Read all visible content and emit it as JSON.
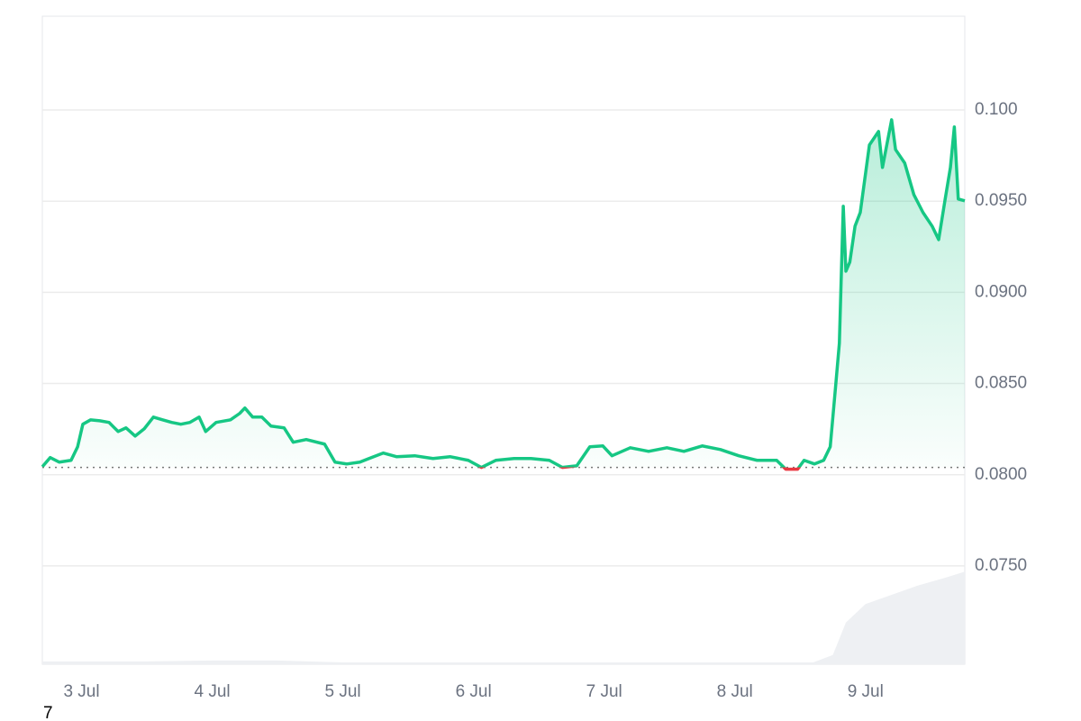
{
  "chart_data": {
    "type": "line",
    "x": [
      2.7,
      2.76,
      2.83,
      2.92,
      2.97,
      3.01,
      3.07,
      3.14,
      3.21,
      3.28,
      3.34,
      3.41,
      3.48,
      3.55,
      3.62,
      3.69,
      3.76,
      3.83,
      3.9,
      3.95,
      4.03,
      4.14,
      4.21,
      4.25,
      4.31,
      4.38,
      4.45,
      4.55,
      4.62,
      4.72,
      4.86,
      4.94,
      5.03,
      5.13,
      5.2,
      5.31,
      5.41,
      5.55,
      5.69,
      5.82,
      5.96,
      6.06,
      6.17,
      6.31,
      6.44,
      6.58,
      6.68,
      6.79,
      6.89,
      6.99,
      7.06,
      7.2,
      7.34,
      7.48,
      7.61,
      7.75,
      7.89,
      8.03,
      8.17,
      8.32,
      8.39,
      8.48,
      8.53,
      8.61,
      8.68,
      8.73,
      8.77,
      8.8,
      8.83,
      8.85,
      8.88,
      8.92,
      8.96,
      9.03,
      9.1,
      9.13,
      9.2,
      9.23,
      9.3,
      9.37,
      9.44,
      9.51,
      9.56,
      9.61,
      9.65,
      9.68,
      9.71,
      9.76
    ],
    "series": [
      {
        "color": "#16c784",
        "below_color": "#ea3943",
        "values": [
          0.08044,
          0.08094,
          0.08069,
          0.08079,
          0.08153,
          0.08277,
          0.08301,
          0.08296,
          0.08287,
          0.08237,
          0.08257,
          0.08212,
          0.08252,
          0.08316,
          0.08301,
          0.08287,
          0.08277,
          0.08287,
          0.08316,
          0.08237,
          0.08287,
          0.08301,
          0.08336,
          0.08366,
          0.08316,
          0.08316,
          0.08267,
          0.08257,
          0.08178,
          0.08193,
          0.08168,
          0.08069,
          0.08059,
          0.08069,
          0.08089,
          0.08119,
          0.08099,
          0.08104,
          0.08089,
          0.08099,
          0.08079,
          0.0804,
          0.08079,
          0.08089,
          0.08089,
          0.08079,
          0.0804,
          0.08049,
          0.08153,
          0.08158,
          0.08104,
          0.08148,
          0.08128,
          0.08148,
          0.08128,
          0.08158,
          0.08138,
          0.08104,
          0.08079,
          0.08079,
          0.0803,
          0.0803,
          0.08079,
          0.08059,
          0.08079,
          0.08153,
          0.08474,
          0.08721,
          0.09472,
          0.09116,
          0.09166,
          0.09363,
          0.09438,
          0.09808,
          0.09882,
          0.09685,
          0.09946,
          0.09783,
          0.09709,
          0.09536,
          0.09438,
          0.09363,
          0.09289,
          0.09512,
          0.09685,
          0.09907,
          0.09512,
          0.09502
        ]
      }
    ],
    "baseline": 0.0804,
    "volume": {
      "color": "#eef0f3",
      "x": [
        2.7,
        3.5,
        4.0,
        4.5,
        5.0,
        6.0,
        7.0,
        8.0,
        8.6,
        8.75,
        8.85,
        9.0,
        9.2,
        9.4,
        9.6,
        9.76
      ],
      "values": [
        3,
        3,
        4,
        4,
        2,
        2,
        2,
        2,
        2,
        10,
        45,
        65,
        75,
        85,
        93,
        100
      ]
    },
    "y2lim": [
      0,
      700
    ],
    "xlim": [
      2.7,
      9.76
    ],
    "xticks": [
      {
        "value": 3,
        "label": "3 Jul"
      },
      {
        "value": 4,
        "label": "4 Jul"
      },
      {
        "value": 5,
        "label": "5 Jul"
      },
      {
        "value": 6,
        "label": "6 Jul"
      },
      {
        "value": 7,
        "label": "7 Jul"
      },
      {
        "value": 8,
        "label": "8 Jul"
      },
      {
        "value": 9,
        "label": "9 Jul"
      }
    ],
    "ylim": [
      0.06961,
      0.10514
    ],
    "yticks": [
      {
        "value": 0.075,
        "label": "0.0750"
      },
      {
        "value": 0.08,
        "label": "0.0800"
      },
      {
        "value": 0.085,
        "label": "0.0850"
      },
      {
        "value": 0.09,
        "label": "0.0900"
      },
      {
        "value": 0.095,
        "label": "0.0950"
      },
      {
        "value": 0.1,
        "label": "0.100"
      }
    ],
    "grid": true,
    "footnote": "7"
  }
}
